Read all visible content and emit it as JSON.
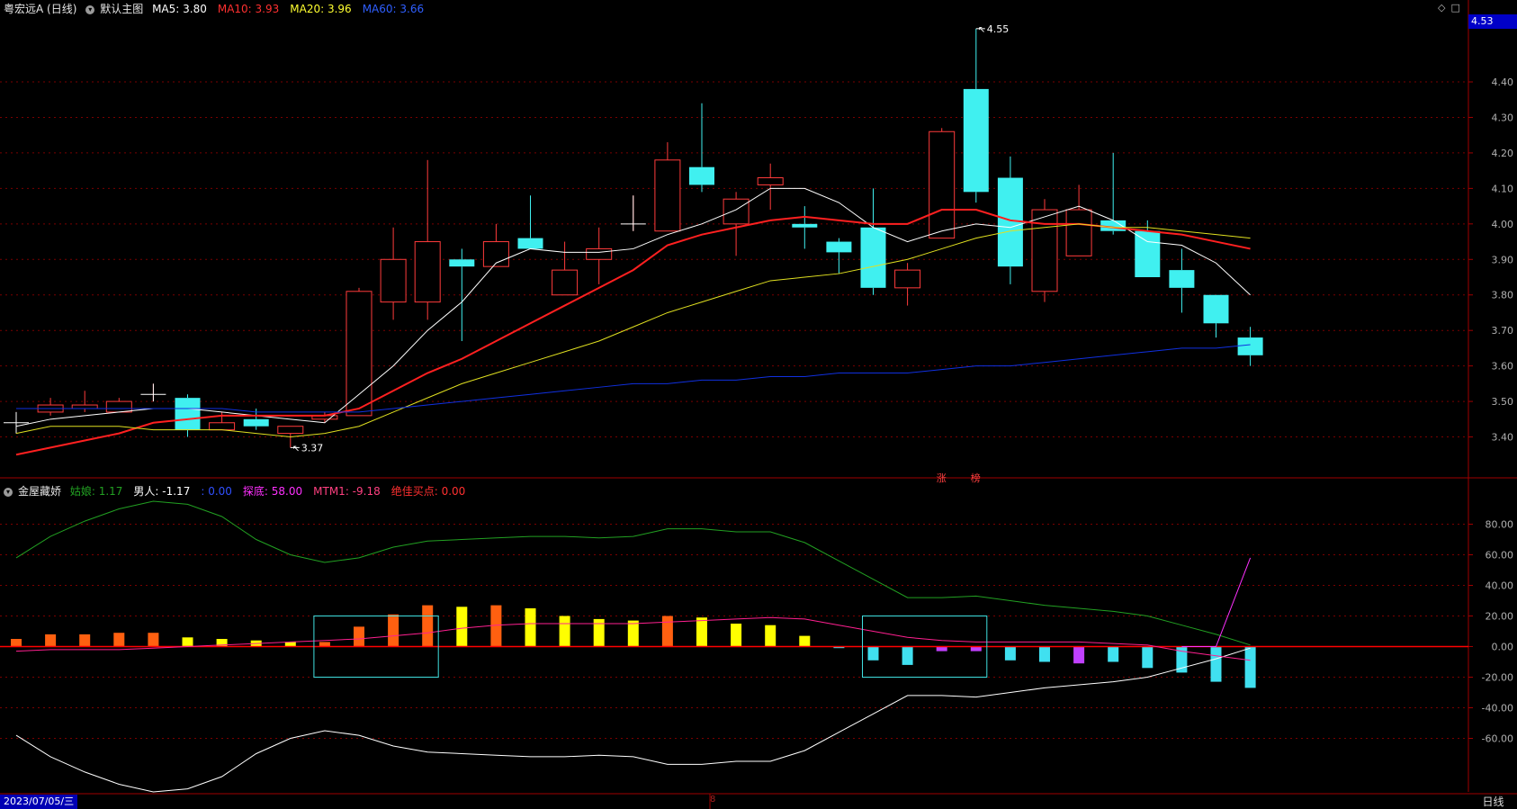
{
  "header": {
    "stock": "粤宏远A (日线)",
    "main_chart": "默认主图",
    "ma": [
      {
        "label": "MA5: ",
        "value": "3.80",
        "label_color": "#ffffff",
        "value_color": "#ffffff"
      },
      {
        "label": "MA10: ",
        "value": "3.93",
        "label_color": "#ff3030",
        "value_color": "#ff3030"
      },
      {
        "label": "MA20: ",
        "value": "3.96",
        "label_color": "#ffff30",
        "value_color": "#ffff30"
      },
      {
        "label": "MA60: ",
        "value": "3.66",
        "label_color": "#2f5fff",
        "value_color": "#2f5fff"
      }
    ]
  },
  "indicator": {
    "name": "金屋藏娇",
    "items": [
      {
        "label": "姑娘: ",
        "value": "1.17",
        "color": "#22a022"
      },
      {
        "label": "男人: ",
        "value": "-1.17",
        "color": "#ffffff"
      },
      {
        "label": ": ",
        "value": "0.00",
        "color": "#3050ff"
      },
      {
        "label": "探底: ",
        "value": "58.00",
        "color": "#ff30ff"
      },
      {
        "label": "MTM1: ",
        "value": "-9.18",
        "color": "#ff4080"
      },
      {
        "label": "绝佳买点: ",
        "value": "0.00",
        "color": "#ff3030"
      }
    ]
  },
  "current_price_box": "4.53",
  "date_label": "2023/07/05/三",
  "period_label": "日线",
  "mid_tick": "8",
  "markers": [
    {
      "text": "涨",
      "index": 27
    },
    {
      "text": "榜",
      "index": 28
    }
  ],
  "chart_data": {
    "type": "candlestick",
    "price_axis": {
      "ticks": [
        "3.40",
        "3.50",
        "3.60",
        "3.70",
        "3.80",
        "3.90",
        "4.00",
        "4.10",
        "4.20",
        "4.30",
        "4.40"
      ],
      "range": [
        3.3,
        4.58
      ]
    },
    "annotations": [
      {
        "text": "4.55",
        "index": 28,
        "value": 4.55
      },
      {
        "text": "3.37",
        "index": 8,
        "value": 3.37
      }
    ],
    "candles": [
      {
        "o": 3.44,
        "h": 3.47,
        "l": 3.41,
        "c": 3.44
      },
      {
        "o": 3.47,
        "h": 3.51,
        "l": 3.46,
        "c": 3.49
      },
      {
        "o": 3.48,
        "h": 3.53,
        "l": 3.47,
        "c": 3.49
      },
      {
        "o": 3.47,
        "h": 3.51,
        "l": 3.47,
        "c": 3.5
      },
      {
        "o": 3.52,
        "h": 3.55,
        "l": 3.5,
        "c": 3.52
      },
      {
        "o": 3.51,
        "h": 3.52,
        "l": 3.4,
        "c": 3.42
      },
      {
        "o": 3.42,
        "h": 3.47,
        "l": 3.42,
        "c": 3.44
      },
      {
        "o": 3.45,
        "h": 3.48,
        "l": 3.42,
        "c": 3.43
      },
      {
        "o": 3.41,
        "h": 3.43,
        "l": 3.37,
        "c": 3.43
      },
      {
        "o": 3.45,
        "h": 3.47,
        "l": 3.44,
        "c": 3.46
      },
      {
        "o": 3.46,
        "h": 3.82,
        "l": 3.46,
        "c": 3.81
      },
      {
        "o": 3.78,
        "h": 3.99,
        "l": 3.73,
        "c": 3.9
      },
      {
        "o": 3.78,
        "h": 4.18,
        "l": 3.73,
        "c": 3.95
      },
      {
        "o": 3.9,
        "h": 3.93,
        "l": 3.67,
        "c": 3.88
      },
      {
        "o": 3.88,
        "h": 4.0,
        "l": 3.88,
        "c": 3.95
      },
      {
        "o": 3.96,
        "h": 4.08,
        "l": 3.93,
        "c": 3.93
      },
      {
        "o": 3.8,
        "h": 3.95,
        "l": 3.8,
        "c": 3.87
      },
      {
        "o": 3.9,
        "h": 3.99,
        "l": 3.83,
        "c": 3.93
      },
      {
        "o": 4.0,
        "h": 4.08,
        "l": 3.98,
        "c": 4.0
      },
      {
        "o": 3.98,
        "h": 4.23,
        "l": 3.98,
        "c": 4.18
      },
      {
        "o": 4.16,
        "h": 4.34,
        "l": 4.09,
        "c": 4.11
      },
      {
        "o": 4.0,
        "h": 4.09,
        "l": 3.91,
        "c": 4.07
      },
      {
        "o": 4.11,
        "h": 4.17,
        "l": 4.04,
        "c": 4.13
      },
      {
        "o": 4.0,
        "h": 4.05,
        "l": 3.93,
        "c": 3.99
      },
      {
        "o": 3.95,
        "h": 3.96,
        "l": 3.86,
        "c": 3.92
      },
      {
        "o": 3.99,
        "h": 4.1,
        "l": 3.8,
        "c": 3.82
      },
      {
        "o": 3.82,
        "h": 3.89,
        "l": 3.77,
        "c": 3.87
      },
      {
        "o": 3.96,
        "h": 4.27,
        "l": 3.96,
        "c": 4.26
      },
      {
        "o": 4.38,
        "h": 4.55,
        "l": 4.06,
        "c": 4.09
      },
      {
        "o": 4.13,
        "h": 4.19,
        "l": 3.83,
        "c": 3.88
      },
      {
        "o": 3.81,
        "h": 4.07,
        "l": 3.78,
        "c": 4.04
      },
      {
        "o": 3.91,
        "h": 4.11,
        "l": 3.91,
        "c": 4.04
      },
      {
        "o": 4.01,
        "h": 4.2,
        "l": 3.97,
        "c": 3.98
      },
      {
        "o": 3.98,
        "h": 4.01,
        "l": 3.85,
        "c": 3.85
      },
      {
        "o": 3.87,
        "h": 3.93,
        "l": 3.75,
        "c": 3.82
      },
      {
        "o": 3.8,
        "h": 3.8,
        "l": 3.68,
        "c": 3.72
      },
      {
        "o": 3.68,
        "h": 3.71,
        "l": 3.6,
        "c": 3.63
      }
    ],
    "series": [
      {
        "name": "MA5",
        "color": "#ffffff",
        "values": [
          3.43,
          3.45,
          3.46,
          3.47,
          3.48,
          3.48,
          3.47,
          3.46,
          3.45,
          3.44,
          3.52,
          3.6,
          3.7,
          3.78,
          3.89,
          3.93,
          3.92,
          3.92,
          3.93,
          3.97,
          4.0,
          4.04,
          4.1,
          4.1,
          4.06,
          3.99,
          3.95,
          3.98,
          4.0,
          3.99,
          4.02,
          4.05,
          4.01,
          3.95,
          3.94,
          3.89,
          3.8
        ]
      },
      {
        "name": "MA10",
        "color": "#ff2020",
        "values": [
          3.35,
          3.37,
          3.39,
          3.41,
          3.44,
          3.45,
          3.46,
          3.46,
          3.46,
          3.46,
          3.48,
          3.53,
          3.58,
          3.62,
          3.67,
          3.72,
          3.77,
          3.82,
          3.87,
          3.94,
          3.97,
          3.99,
          4.01,
          4.02,
          4.01,
          4.0,
          4.0,
          4.04,
          4.04,
          4.01,
          4.0,
          4.0,
          3.99,
          3.98,
          3.97,
          3.95,
          3.93
        ]
      },
      {
        "name": "MA20",
        "color": "#e0e020",
        "values": [
          3.41,
          3.43,
          3.43,
          3.43,
          3.42,
          3.42,
          3.42,
          3.41,
          3.4,
          3.41,
          3.43,
          3.47,
          3.51,
          3.55,
          3.58,
          3.61,
          3.64,
          3.67,
          3.71,
          3.75,
          3.78,
          3.81,
          3.84,
          3.85,
          3.86,
          3.88,
          3.9,
          3.93,
          3.96,
          3.98,
          3.99,
          4.0,
          3.99,
          3.99,
          3.98,
          3.97,
          3.96
        ]
      },
      {
        "name": "MA60",
        "color": "#1030e0",
        "values": [
          3.48,
          3.48,
          3.48,
          3.48,
          3.48,
          3.48,
          3.48,
          3.47,
          3.47,
          3.47,
          3.47,
          3.48,
          3.49,
          3.5,
          3.51,
          3.52,
          3.53,
          3.54,
          3.55,
          3.55,
          3.56,
          3.56,
          3.57,
          3.57,
          3.58,
          3.58,
          3.58,
          3.59,
          3.6,
          3.6,
          3.61,
          3.62,
          3.63,
          3.64,
          3.65,
          3.65,
          3.66
        ]
      }
    ],
    "indicator_axis": {
      "ticks": [
        "80.00",
        "60.00",
        "40.00",
        "20.00",
        "0.00",
        "-20.00",
        "-40.00",
        "-60.00"
      ],
      "range": [
        -95,
        105
      ]
    },
    "bars": [
      5,
      8,
      8,
      9,
      9,
      6,
      5,
      4,
      3,
      3,
      13,
      21,
      27,
      26,
      27,
      25,
      20,
      18,
      17,
      20,
      19,
      15,
      14,
      7,
      -1,
      -9,
      -12,
      -3,
      -3,
      -9,
      -10,
      -11,
      -10,
      -14,
      -17,
      -23,
      -27
    ],
    "bar_colors": [
      "#ff6010",
      "#ff6010",
      "#ff6010",
      "#ff6010",
      "#ff6010",
      "#ffff00",
      "#ffff00",
      "#ffff00",
      "#ffff00",
      "#ff6010",
      "#ff6010",
      "#ff6010",
      "#ff6010",
      "#ffff00",
      "#ff6010",
      "#ffff00",
      "#ffff00",
      "#ffff00",
      "#ffff00",
      "#ff6010",
      "#ffff00",
      "#ffff00",
      "#ffff00",
      "#ffff00",
      "#40e0f0",
      "#40e0f0",
      "#40e0f0",
      "#c040ff",
      "#c040ff",
      "#40e0f0",
      "#40e0f0",
      "#c040ff",
      "#40e0f0",
      "#40e0f0",
      "#40e0f0",
      "#40e0f0",
      "#40e0f0"
    ],
    "lines": [
      {
        "name": "姑娘",
        "color": "#22a022",
        "values": [
          58,
          72,
          82,
          90,
          95,
          93,
          85,
          70,
          60,
          55,
          58,
          65,
          69,
          70,
          71,
          72,
          72,
          71,
          72,
          77,
          77,
          75,
          75,
          68,
          56,
          44,
          32,
          32,
          33,
          30,
          27,
          25,
          23,
          20,
          14,
          8,
          1
        ]
      },
      {
        "name": "男人",
        "color": "#ffffff",
        "values": [
          -58,
          -72,
          -82,
          -90,
          -95,
          -93,
          -85,
          -70,
          -60,
          -55,
          -58,
          -65,
          -69,
          -70,
          -71,
          -72,
          -72,
          -71,
          -72,
          -77,
          -77,
          -75,
          -75,
          -68,
          -56,
          -44,
          -32,
          -32,
          -33,
          -30,
          -27,
          -25,
          -23,
          -20,
          -14,
          -8,
          -1
        ]
      },
      {
        "name": "MTM1",
        "color": "#ff2090",
        "values": [
          -3,
          -2,
          -2,
          -2,
          -1,
          0,
          1,
          2,
          3,
          4,
          5,
          7,
          9,
          12,
          14,
          15,
          15,
          15,
          15,
          16,
          17,
          18,
          19,
          18,
          14,
          10,
          6,
          4,
          3,
          3,
          3,
          3,
          2,
          1,
          -3,
          -6,
          -9
        ]
      },
      {
        "name": "探底",
        "color": "#ff30ff",
        "start_index": 34,
        "values": [
          0,
          0,
          58
        ]
      }
    ],
    "boxes": [
      {
        "from": 9,
        "to": 12,
        "top": 20,
        "bottom": -20
      },
      {
        "from": 25,
        "to": 28,
        "top": 20,
        "bottom": -20
      }
    ]
  }
}
